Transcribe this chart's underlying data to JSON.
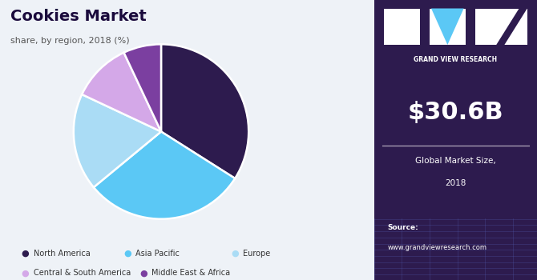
{
  "title": "Cookies Market",
  "subtitle": "share, by region, 2018 (%)",
  "slices": [
    34,
    30,
    18,
    11,
    7
  ],
  "labels": [
    "North America",
    "Asia Pacific",
    "Europe",
    "Central & South America",
    "Middle East & Africa"
  ],
  "colors": [
    "#2d1b4e",
    "#5bc8f5",
    "#aadcf5",
    "#d4a8e8",
    "#7b3fa0"
  ],
  "start_angle": 90,
  "bg_color": "#eef2f7",
  "right_panel_bg": "#2d1b4e",
  "market_size": "$30.6B",
  "market_label_line1": "Global Market Size,",
  "market_label_line2": "2018",
  "source_line1": "Source:",
  "source_line2": "www.grandviewresearch.com",
  "logo_text": "GRAND VIEW RESEARCH"
}
